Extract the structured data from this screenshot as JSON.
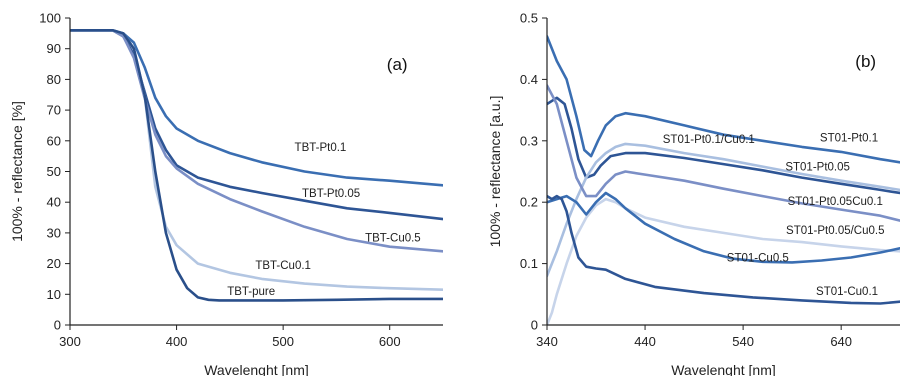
{
  "chart_data": [
    {
      "type": "line",
      "panel_label": "(a)",
      "xlabel": "Wavelenght [nm]",
      "ylabel": "100% - reflectance [%]",
      "xlim": [
        300,
        650
      ],
      "ylim": [
        0,
        100
      ],
      "xticks": [
        300,
        400,
        500,
        600
      ],
      "yticks": [
        0,
        10,
        20,
        30,
        40,
        50,
        60,
        70,
        80,
        90,
        100
      ],
      "grid": false,
      "series": [
        {
          "name": "TBT-Pt0.1",
          "color": "#3a6eb2",
          "x": [
            300,
            340,
            350,
            360,
            370,
            380,
            390,
            400,
            420,
            450,
            480,
            520,
            560,
            600,
            650
          ],
          "y": [
            96,
            96,
            95,
            92,
            84,
            74,
            68,
            64,
            60,
            56,
            53,
            50,
            48,
            47,
            45.5
          ]
        },
        {
          "name": "TBT-Pt0.05",
          "color": "#2e5595",
          "x": [
            300,
            340,
            350,
            360,
            370,
            380,
            390,
            400,
            420,
            450,
            480,
            520,
            560,
            600,
            650
          ],
          "y": [
            96,
            96,
            94,
            88,
            76,
            64,
            57,
            52,
            48,
            45,
            43,
            40.5,
            38,
            36.5,
            34.5
          ]
        },
        {
          "name": "TBT-Cu0.5",
          "color": "#7b8fc6",
          "x": [
            300,
            340,
            350,
            360,
            370,
            380,
            390,
            400,
            420,
            450,
            480,
            520,
            560,
            600,
            650
          ],
          "y": [
            96,
            96,
            94,
            87,
            74,
            62,
            55,
            51,
            46,
            41,
            37,
            32,
            28,
            25.5,
            24
          ]
        },
        {
          "name": "TBT-Cu0.1",
          "color": "#b3c6e2",
          "x": [
            300,
            340,
            350,
            360,
            370,
            375,
            380,
            390,
            400,
            420,
            450,
            480,
            520,
            560,
            600,
            650
          ],
          "y": [
            96,
            96,
            95,
            90,
            75,
            60,
            45,
            32,
            26,
            20,
            17,
            15,
            13.5,
            12.5,
            12,
            11.5
          ]
        },
        {
          "name": "TBT-pure",
          "color": "#2a4f8a",
          "x": [
            300,
            340,
            350,
            360,
            370,
            380,
            390,
            400,
            410,
            420,
            430,
            440,
            460,
            500,
            550,
            600,
            650
          ],
          "y": [
            96,
            96,
            95,
            90,
            75,
            50,
            30,
            18,
            12,
            9,
            8.2,
            8,
            8,
            8,
            8.2,
            8.5,
            8.5
          ]
        }
      ]
    },
    {
      "type": "line",
      "panel_label": "(b)",
      "xlabel": "Wavelenght [nm]",
      "ylabel": "100% - reflectance [a.u.]",
      "xlim": [
        340,
        700
      ],
      "ylim": [
        0,
        0.5
      ],
      "xticks": [
        340,
        440,
        540,
        640
      ],
      "yticks": [
        0,
        0.1,
        0.2,
        0.3,
        0.4,
        0.5
      ],
      "ytick_labels": [
        "0",
        "0.1",
        "0.2",
        "0.3",
        "0.4",
        "0.5"
      ],
      "grid": false,
      "series": [
        {
          "name": "ST01-Pt0.1",
          "color": "#3a6eb2",
          "x": [
            340,
            350,
            360,
            370,
            378,
            385,
            392,
            400,
            410,
            420,
            440,
            480,
            520,
            560,
            600,
            640,
            680,
            700
          ],
          "y": [
            0.47,
            0.43,
            0.4,
            0.34,
            0.285,
            0.275,
            0.3,
            0.325,
            0.34,
            0.345,
            0.34,
            0.325,
            0.31,
            0.3,
            0.29,
            0.282,
            0.27,
            0.265
          ]
        },
        {
          "name": "ST01-Pt0.05",
          "color": "#2e5595",
          "x": [
            340,
            350,
            358,
            365,
            372,
            380,
            388,
            395,
            405,
            420,
            440,
            480,
            520,
            560,
            600,
            640,
            680,
            700
          ],
          "y": [
            0.36,
            0.37,
            0.36,
            0.32,
            0.27,
            0.24,
            0.245,
            0.26,
            0.275,
            0.28,
            0.28,
            0.272,
            0.262,
            0.252,
            0.24,
            0.23,
            0.22,
            0.215
          ]
        },
        {
          "name": "ST01-Pt0.1/Cu0.1",
          "color": "#a9bfe0",
          "x": [
            340,
            350,
            360,
            370,
            380,
            390,
            400,
            410,
            420,
            440,
            480,
            520,
            560,
            600,
            640,
            680,
            700
          ],
          "y": [
            0.08,
            0.12,
            0.165,
            0.205,
            0.24,
            0.265,
            0.28,
            0.29,
            0.295,
            0.292,
            0.28,
            0.27,
            0.258,
            0.246,
            0.235,
            0.225,
            0.22
          ]
        },
        {
          "name": "ST01-Pt0.05Cu0.1",
          "color": "#7b8fc6",
          "x": [
            340,
            350,
            360,
            370,
            380,
            390,
            400,
            410,
            420,
            440,
            480,
            520,
            560,
            600,
            640,
            680,
            700
          ],
          "y": [
            0.39,
            0.36,
            0.3,
            0.24,
            0.21,
            0.21,
            0.23,
            0.245,
            0.25,
            0.245,
            0.235,
            0.222,
            0.21,
            0.198,
            0.188,
            0.178,
            0.17
          ]
        },
        {
          "name": "ST01-Pt0.05/Cu0.5",
          "color": "#c7d4ea",
          "x": [
            340,
            345,
            350,
            360,
            370,
            380,
            390,
            400,
            410,
            420,
            440,
            480,
            520,
            560,
            600,
            640,
            680,
            700
          ],
          "y": [
            0.0,
            0.02,
            0.05,
            0.1,
            0.145,
            0.175,
            0.195,
            0.205,
            0.2,
            0.19,
            0.175,
            0.16,
            0.15,
            0.14,
            0.135,
            0.128,
            0.122,
            0.12
          ]
        },
        {
          "name": "ST01-Cu0.5",
          "color": "#3a6eb2",
          "x": [
            340,
            350,
            360,
            370,
            380,
            390,
            400,
            410,
            420,
            440,
            470,
            500,
            530,
            560,
            590,
            620,
            650,
            680,
            700
          ],
          "y": [
            0.2,
            0.205,
            0.21,
            0.2,
            0.18,
            0.2,
            0.215,
            0.205,
            0.19,
            0.165,
            0.14,
            0.12,
            0.108,
            0.103,
            0.102,
            0.105,
            0.11,
            0.118,
            0.125
          ]
        },
        {
          "name": "ST01-Cu0.1",
          "color": "#2e5595",
          "x": [
            340,
            345,
            350,
            355,
            360,
            365,
            372,
            380,
            390,
            400,
            420,
            450,
            500,
            550,
            600,
            650,
            680,
            700
          ],
          "y": [
            0.21,
            0.205,
            0.21,
            0.205,
            0.185,
            0.15,
            0.11,
            0.095,
            0.092,
            0.09,
            0.075,
            0.062,
            0.052,
            0.045,
            0.04,
            0.036,
            0.035,
            0.038
          ]
        }
      ],
      "annotations": [
        {
          "text": "ST01-Pt0.1",
          "x": 648,
          "y": 0.305
        },
        {
          "text": "ST01-Pt0.1/Cu0.1",
          "x": 505,
          "y": 0.303
        },
        {
          "text": "ST01-Pt0.05",
          "x": 616,
          "y": 0.258
        },
        {
          "text": "ST01-Pt0.05Cu0.1",
          "x": 634,
          "y": 0.202
        },
        {
          "text": "ST01-Pt0.05/Cu0.5",
          "x": 634,
          "y": 0.155
        },
        {
          "text": "ST01-Cu0.5",
          "x": 555,
          "y": 0.11
        },
        {
          "text": "ST01-Cu0.1",
          "x": 646,
          "y": 0.055
        }
      ]
    }
  ],
  "panel_a_annotations": [
    {
      "text": "TBT-Pt0.1",
      "x": 535,
      "y": 58
    },
    {
      "text": "TBT-Pt0.05",
      "x": 545,
      "y": 43
    },
    {
      "text": "TBT-Cu0.5",
      "x": 603,
      "y": 28.5
    },
    {
      "text": "TBT-Cu0.1",
      "x": 500,
      "y": 19.5
    },
    {
      "text": "TBT-pure",
      "x": 470,
      "y": 11
    }
  ]
}
